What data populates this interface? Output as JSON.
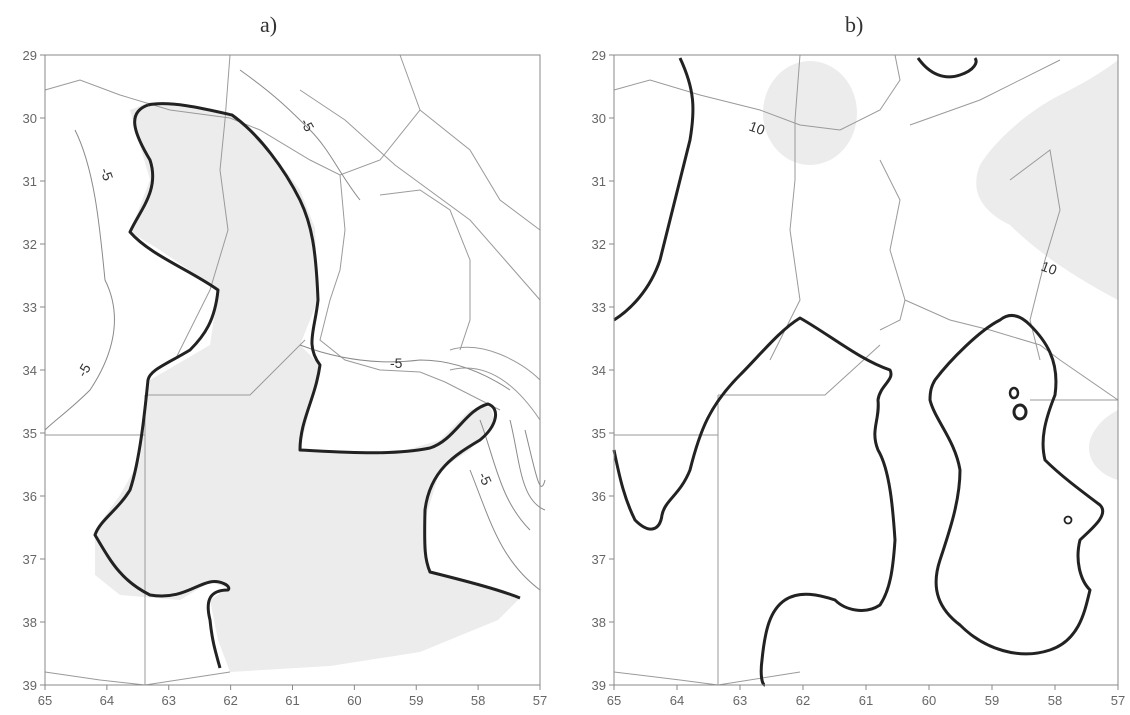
{
  "panels": [
    {
      "title": "a)",
      "x_ticks": [
        "65",
        "64",
        "63",
        "62",
        "61",
        "60",
        "59",
        "58",
        "57"
      ],
      "y_ticks": [
        "29",
        "30",
        "31",
        "32",
        "33",
        "34",
        "35",
        "36",
        "37",
        "38",
        "39"
      ],
      "contour_labels": [
        "-5",
        "-5",
        "-5",
        "-5",
        "-5"
      ]
    },
    {
      "title": "b)",
      "x_ticks": [
        "65",
        "64",
        "63",
        "62",
        "61",
        "60",
        "59",
        "58",
        "57"
      ],
      "y_ticks": [
        "29",
        "30",
        "31",
        "32",
        "33",
        "34",
        "35",
        "36",
        "37",
        "38",
        "39"
      ],
      "contour_labels": [
        "10",
        "10"
      ]
    }
  ],
  "colors": {
    "shade": "#ececec",
    "border": "#9a9a9a",
    "contour_bold": "#222222",
    "contour_thin": "#8a8a8a",
    "frame": "#888888"
  }
}
